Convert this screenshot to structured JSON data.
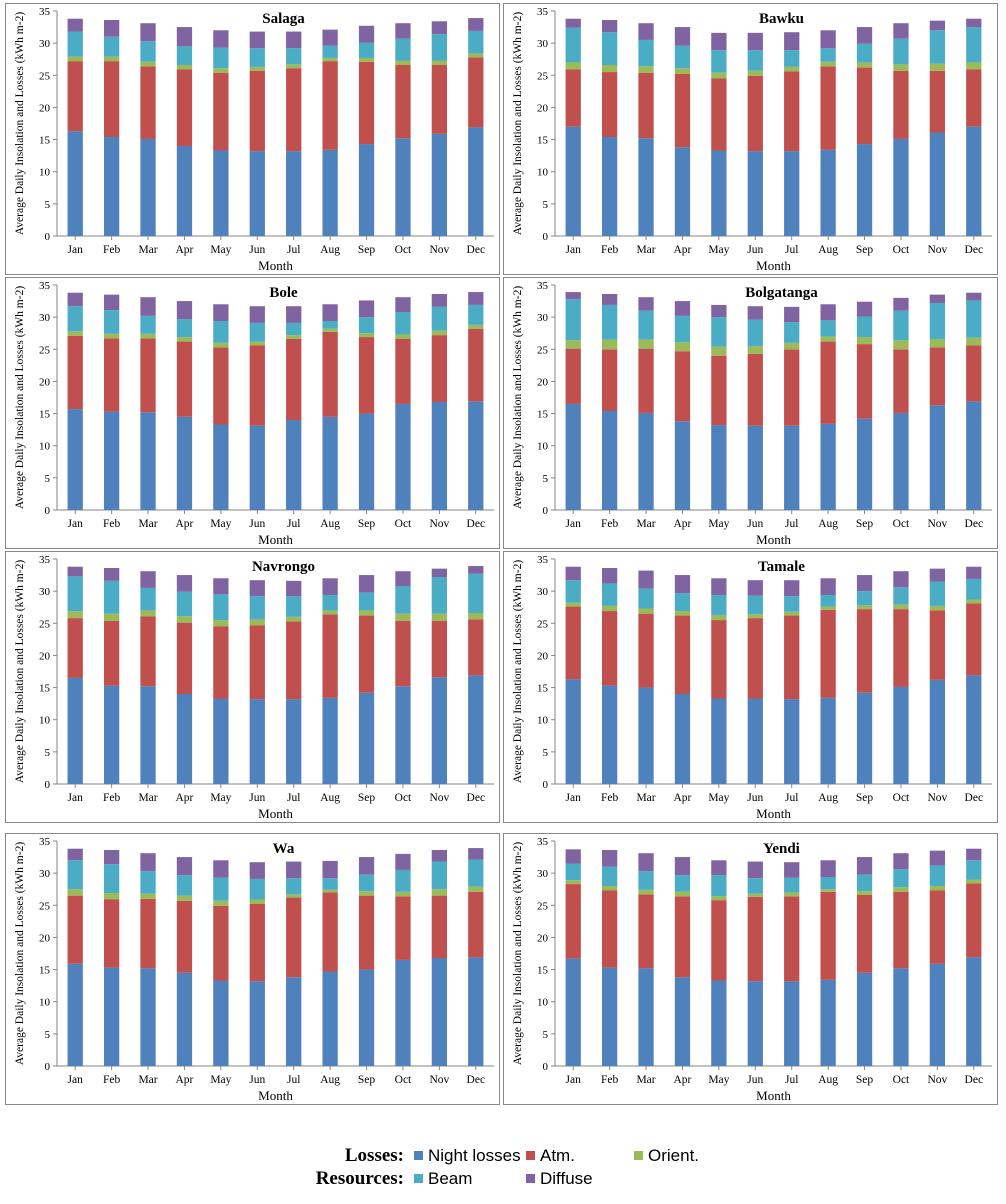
{
  "colors": {
    "night": "#4F81BD",
    "atm": "#C0504D",
    "orient": "#9BBB59",
    "beam": "#4BACC6",
    "diffuse": "#8064A2"
  },
  "legend": {
    "losses_label": "Losses:",
    "resources_label": "Resources:",
    "items": [
      {
        "key": "night",
        "label": "Night losses"
      },
      {
        "key": "atm",
        "label": "Atm."
      },
      {
        "key": "orient",
        "label": "Orient."
      },
      {
        "key": "beam",
        "label": "Beam"
      },
      {
        "key": "diffuse",
        "label": "Diffuse"
      }
    ]
  },
  "chart_data": [
    {
      "type": "bar",
      "stacked": true,
      "title": "Salaga",
      "xlabel": "Month",
      "ylabel": "Average Daily Insolation and Losses (kWh m-2)",
      "ylim": [
        0,
        35
      ],
      "yticks": [
        0,
        5,
        10,
        15,
        20,
        25,
        30,
        35
      ],
      "categories": [
        "Jan",
        "Feb",
        "Mar",
        "Apr",
        "May",
        "Jun",
        "Jul",
        "Aug",
        "Sep",
        "Oct",
        "Nov",
        "Dec"
      ],
      "series": [
        {
          "key": "night",
          "name": "Night losses",
          "values": [
            16.3,
            15.4,
            15.1,
            14.0,
            13.3,
            13.2,
            13.2,
            13.4,
            14.3,
            15.2,
            15.9,
            16.9
          ]
        },
        {
          "key": "atm",
          "name": "Atm.",
          "values": [
            10.9,
            11.8,
            11.3,
            11.9,
            12.1,
            12.5,
            12.9,
            13.8,
            12.8,
            11.4,
            10.7,
            10.9
          ]
        },
        {
          "key": "orient",
          "name": "Orient.",
          "values": [
            0.7,
            0.7,
            0.7,
            0.7,
            0.7,
            0.6,
            0.6,
            0.5,
            0.6,
            0.7,
            0.7,
            0.6
          ]
        },
        {
          "key": "beam",
          "name": "Beam",
          "values": [
            3.9,
            3.1,
            3.2,
            2.9,
            3.2,
            2.9,
            2.5,
            1.9,
            2.4,
            3.4,
            4.1,
            3.5
          ]
        },
        {
          "key": "diffuse",
          "name": "Diffuse",
          "values": [
            2.0,
            2.6,
            2.8,
            3.0,
            2.7,
            2.6,
            2.6,
            2.5,
            2.6,
            2.4,
            2.0,
            2.0
          ]
        }
      ]
    },
    {
      "type": "bar",
      "stacked": true,
      "title": "Bawku",
      "xlabel": "Month",
      "ylabel": "Average Daily Insolation and Losses (kWh m-2)",
      "ylim": [
        0,
        35
      ],
      "yticks": [
        0,
        5,
        10,
        15,
        20,
        25,
        30,
        35
      ],
      "categories": [
        "Jan",
        "Feb",
        "Mar",
        "Apr",
        "May",
        "Jun",
        "Jul",
        "Aug",
        "Sep",
        "Oct",
        "Nov",
        "Dec"
      ],
      "series": [
        {
          "key": "night",
          "name": "Night losses",
          "values": [
            17.0,
            15.4,
            15.2,
            13.8,
            13.3,
            13.2,
            13.2,
            13.4,
            14.3,
            15.1,
            16.1,
            17.0
          ]
        },
        {
          "key": "atm",
          "name": "Atm.",
          "values": [
            8.9,
            10.1,
            10.2,
            11.4,
            11.2,
            11.7,
            12.4,
            13.0,
            11.9,
            10.6,
            9.6,
            8.9
          ]
        },
        {
          "key": "orient",
          "name": "Orient.",
          "values": [
            1.1,
            1.1,
            1.0,
            0.9,
            0.9,
            0.8,
            0.7,
            0.7,
            0.8,
            1.0,
            1.1,
            1.1
          ]
        },
        {
          "key": "beam",
          "name": "Beam",
          "values": [
            5.4,
            5.1,
            4.1,
            3.5,
            3.5,
            3.2,
            2.6,
            2.1,
            2.9,
            4.0,
            5.2,
            5.5
          ]
        },
        {
          "key": "diffuse",
          "name": "Diffuse",
          "values": [
            1.4,
            1.9,
            2.6,
            2.9,
            2.7,
            2.7,
            2.8,
            2.8,
            2.6,
            2.4,
            1.5,
            1.3
          ]
        }
      ]
    },
    {
      "type": "bar",
      "stacked": true,
      "title": "Bole",
      "xlabel": "Month",
      "ylabel": "Average Daily Insolation and Losses (kWh m-2)",
      "ylim": [
        0,
        35
      ],
      "yticks": [
        0,
        5,
        10,
        15,
        20,
        25,
        30,
        35
      ],
      "categories": [
        "Jan",
        "Feb",
        "Mar",
        "Apr",
        "May",
        "Jun",
        "Jul",
        "Aug",
        "Sep",
        "Oct",
        "Nov",
        "Dec"
      ],
      "series": [
        {
          "key": "night",
          "name": "Night losses",
          "values": [
            15.7,
            15.3,
            15.2,
            14.5,
            13.3,
            13.1,
            14.0,
            14.5,
            15.0,
            16.5,
            16.8,
            16.9
          ]
        },
        {
          "key": "atm",
          "name": "Atm.",
          "values": [
            11.4,
            11.4,
            11.5,
            11.7,
            12.0,
            12.5,
            12.6,
            13.2,
            11.9,
            10.1,
            10.4,
            11.3
          ]
        },
        {
          "key": "orient",
          "name": "Orient.",
          "values": [
            0.7,
            0.7,
            0.7,
            0.7,
            0.7,
            0.6,
            0.6,
            0.5,
            0.6,
            0.7,
            0.7,
            0.6
          ]
        },
        {
          "key": "beam",
          "name": "Beam",
          "values": [
            3.9,
            3.7,
            2.8,
            2.8,
            3.4,
            2.9,
            1.9,
            1.2,
            2.5,
            3.5,
            3.7,
            3.1
          ]
        },
        {
          "key": "diffuse",
          "name": "Diffuse",
          "values": [
            2.1,
            2.4,
            2.9,
            2.8,
            2.6,
            2.6,
            2.6,
            2.6,
            2.6,
            2.3,
            2.0,
            2.0
          ]
        }
      ]
    },
    {
      "type": "bar",
      "stacked": true,
      "title": "Bolgatanga",
      "xlabel": "Month",
      "ylabel": "Average Daily Insolation and Losses (kWh m-2)",
      "ylim": [
        0,
        35
      ],
      "yticks": [
        0,
        5,
        10,
        15,
        20,
        25,
        30,
        35
      ],
      "categories": [
        "Jan",
        "Feb",
        "Mar",
        "Apr",
        "May",
        "Jun",
        "Jul",
        "Aug",
        "Sep",
        "Oct",
        "Nov",
        "Dec"
      ],
      "series": [
        {
          "key": "night",
          "name": "Night losses",
          "values": [
            16.5,
            15.4,
            15.1,
            13.8,
            13.2,
            13.1,
            13.1,
            13.4,
            14.2,
            15.1,
            16.3,
            16.9
          ]
        },
        {
          "key": "atm",
          "name": "Atm.",
          "values": [
            8.6,
            9.6,
            10.0,
            10.9,
            10.8,
            11.2,
            11.9,
            12.8,
            11.6,
            9.9,
            9.0,
            8.7
          ]
        },
        {
          "key": "orient",
          "name": "Orient.",
          "values": [
            1.3,
            1.5,
            1.4,
            1.4,
            1.4,
            1.2,
            1.0,
            0.8,
            1.1,
            1.4,
            1.3,
            1.2
          ]
        },
        {
          "key": "beam",
          "name": "Beam",
          "values": [
            6.4,
            5.4,
            4.5,
            4.1,
            4.6,
            4.1,
            3.2,
            2.5,
            3.2,
            4.6,
            5.6,
            5.8
          ]
        },
        {
          "key": "diffuse",
          "name": "Diffuse",
          "values": [
            1.1,
            1.7,
            2.1,
            2.3,
            1.9,
            2.1,
            2.4,
            2.5,
            2.3,
            2.0,
            1.3,
            1.2
          ]
        }
      ]
    },
    {
      "type": "bar",
      "stacked": true,
      "title": "Navrongo",
      "xlabel": "Month",
      "ylabel": "Average Daily Insolation and Losses (kWh m-2)",
      "ylim": [
        0,
        35
      ],
      "yticks": [
        0,
        5,
        10,
        15,
        20,
        25,
        30,
        35
      ],
      "categories": [
        "Jan",
        "Feb",
        "Mar",
        "Apr",
        "May",
        "Jun",
        "Jul",
        "Aug",
        "Sep",
        "Oct",
        "Nov",
        "Dec"
      ],
      "series": [
        {
          "key": "night",
          "name": "Night losses",
          "values": [
            16.5,
            15.3,
            15.2,
            14.0,
            13.3,
            13.2,
            13.2,
            13.4,
            14.2,
            15.2,
            16.6,
            16.9
          ]
        },
        {
          "key": "atm",
          "name": "Atm.",
          "values": [
            9.3,
            10.1,
            10.9,
            11.1,
            11.2,
            11.5,
            12.1,
            13.0,
            12.0,
            10.2,
            8.8,
            8.7
          ]
        },
        {
          "key": "orient",
          "name": "Orient.",
          "values": [
            1.1,
            1.1,
            0.9,
            1.0,
            1.0,
            0.9,
            0.7,
            0.6,
            0.8,
            1.1,
            1.1,
            1.0
          ]
        },
        {
          "key": "beam",
          "name": "Beam",
          "values": [
            5.4,
            5.1,
            3.5,
            3.8,
            4.0,
            3.6,
            3.2,
            2.4,
            2.8,
            4.3,
            5.7,
            6.1
          ]
        },
        {
          "key": "diffuse",
          "name": "Diffuse",
          "values": [
            1.5,
            2.0,
            2.6,
            2.6,
            2.5,
            2.5,
            2.4,
            2.6,
            2.7,
            2.3,
            1.3,
            1.2
          ]
        }
      ]
    },
    {
      "type": "bar",
      "stacked": true,
      "title": "Tamale",
      "xlabel": "Month",
      "ylabel": "Average Daily Insolation and Losses (kWh m-2)",
      "ylim": [
        0,
        35
      ],
      "yticks": [
        0,
        5,
        10,
        15,
        20,
        25,
        30,
        35
      ],
      "categories": [
        "Jan",
        "Feb",
        "Mar",
        "Apr",
        "May",
        "Jun",
        "Jul",
        "Aug",
        "Sep",
        "Oct",
        "Nov",
        "Dec"
      ],
      "series": [
        {
          "key": "night",
          "name": "Night losses",
          "values": [
            16.3,
            15.3,
            15.0,
            14.0,
            13.3,
            13.3,
            13.2,
            13.4,
            14.2,
            15.1,
            16.2,
            16.9
          ]
        },
        {
          "key": "atm",
          "name": "Atm.",
          "values": [
            11.3,
            11.6,
            11.5,
            12.2,
            12.2,
            12.5,
            13.0,
            13.7,
            13.0,
            12.1,
            10.8,
            11.2
          ]
        },
        {
          "key": "orient",
          "name": "Orient.",
          "values": [
            0.6,
            0.8,
            0.8,
            0.7,
            0.8,
            0.6,
            0.6,
            0.5,
            0.6,
            0.7,
            0.7,
            0.6
          ]
        },
        {
          "key": "beam",
          "name": "Beam",
          "values": [
            3.5,
            3.5,
            3.1,
            2.8,
            3.1,
            2.9,
            2.4,
            1.8,
            2.2,
            2.7,
            3.8,
            3.2
          ]
        },
        {
          "key": "diffuse",
          "name": "Diffuse",
          "values": [
            2.1,
            2.4,
            2.8,
            2.8,
            2.6,
            2.4,
            2.5,
            2.6,
            2.5,
            2.5,
            2.0,
            1.9
          ]
        }
      ]
    },
    {
      "type": "bar",
      "stacked": true,
      "title": "Wa",
      "xlabel": "Month",
      "ylabel": "Average Daily Insolation and Losses (kWh m-2)",
      "ylim": [
        0,
        35
      ],
      "yticks": [
        0,
        5,
        10,
        15,
        20,
        25,
        30,
        35
      ],
      "categories": [
        "Jan",
        "Feb",
        "Mar",
        "Apr",
        "May",
        "Jun",
        "Jul",
        "Aug",
        "Sep",
        "Oct",
        "Nov",
        "Dec"
      ],
      "series": [
        {
          "key": "night",
          "name": "Night losses",
          "values": [
            15.9,
            15.3,
            15.2,
            14.5,
            13.3,
            13.2,
            13.8,
            14.7,
            15.0,
            16.5,
            16.8,
            16.9
          ]
        },
        {
          "key": "atm",
          "name": "Atm.",
          "values": [
            10.6,
            10.6,
            10.8,
            11.2,
            11.6,
            12.0,
            12.4,
            12.3,
            11.5,
            9.9,
            9.7,
            10.2
          ]
        },
        {
          "key": "orient",
          "name": "Orient.",
          "values": [
            1.0,
            1.0,
            0.8,
            0.8,
            0.8,
            0.7,
            0.5,
            0.4,
            0.7,
            0.7,
            1.0,
            0.8
          ]
        },
        {
          "key": "beam",
          "name": "Beam",
          "values": [
            4.5,
            4.5,
            3.5,
            3.2,
            3.6,
            3.2,
            2.5,
            1.8,
            2.6,
            3.4,
            4.3,
            4.2
          ]
        },
        {
          "key": "diffuse",
          "name": "Diffuse",
          "values": [
            1.8,
            2.2,
            2.8,
            2.8,
            2.7,
            2.6,
            2.6,
            2.7,
            2.7,
            2.5,
            1.8,
            1.8
          ]
        }
      ]
    },
    {
      "type": "bar",
      "stacked": true,
      "title": "Yendi",
      "xlabel": "Month",
      "ylabel": "Average Daily Insolation and Losses (kWh m-2)",
      "ylim": [
        0,
        35
      ],
      "yticks": [
        0,
        5,
        10,
        15,
        20,
        25,
        30,
        35
      ],
      "categories": [
        "Jan",
        "Feb",
        "Mar",
        "Apr",
        "May",
        "Jun",
        "Jul",
        "Aug",
        "Sep",
        "Oct",
        "Nov",
        "Dec"
      ],
      "series": [
        {
          "key": "night",
          "name": "Night losses",
          "values": [
            16.7,
            15.3,
            15.2,
            13.8,
            13.3,
            13.2,
            13.2,
            13.4,
            14.5,
            15.2,
            15.9,
            16.9
          ]
        },
        {
          "key": "atm",
          "name": "Atm.",
          "values": [
            11.6,
            12.0,
            11.5,
            12.6,
            12.5,
            13.1,
            13.2,
            13.7,
            12.1,
            11.9,
            11.4,
            11.5
          ]
        },
        {
          "key": "orient",
          "name": "Orient.",
          "values": [
            0.6,
            0.7,
            0.7,
            0.7,
            0.6,
            0.5,
            0.6,
            0.4,
            0.6,
            0.7,
            0.7,
            0.6
          ]
        },
        {
          "key": "beam",
          "name": "Beam",
          "values": [
            2.6,
            3.0,
            2.9,
            2.6,
            3.3,
            2.4,
            2.3,
            1.9,
            2.6,
            2.8,
            3.2,
            3.0
          ]
        },
        {
          "key": "diffuse",
          "name": "Diffuse",
          "values": [
            2.2,
            2.6,
            2.8,
            2.8,
            2.3,
            2.6,
            2.4,
            2.6,
            2.7,
            2.5,
            2.3,
            1.8
          ]
        }
      ]
    }
  ]
}
